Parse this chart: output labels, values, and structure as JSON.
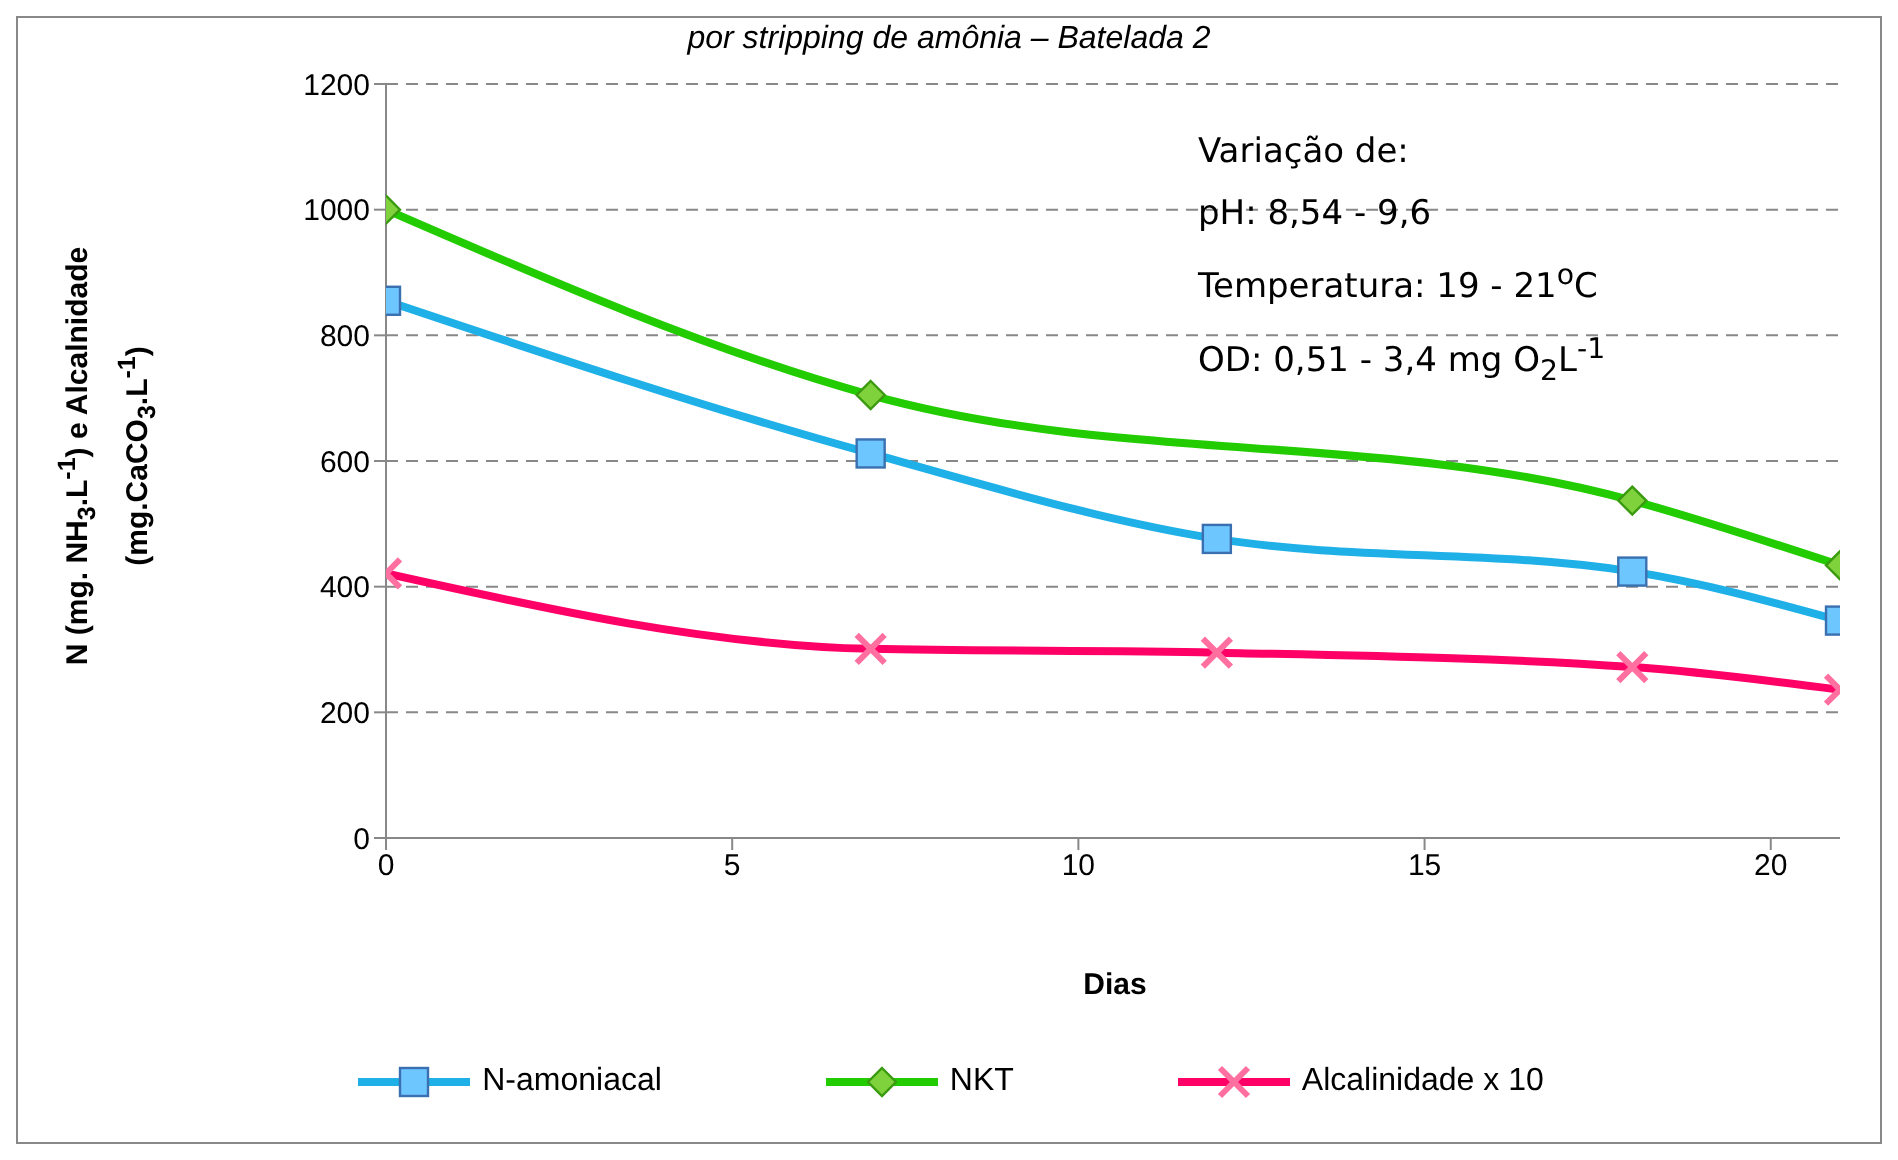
{
  "chart_data": {
    "type": "line",
    "title": "por stripping de amônia – Batelada 2",
    "xlabel": "Dias",
    "ylabel": "N (mg. NH$_{3}$.L$^{-1}$) e Alcalnidade\n(mg.CaCO$_{3}$.L$^{-1}$)",
    "x": [
      0,
      7,
      12,
      18,
      21
    ],
    "xlim": [
      0,
      21
    ],
    "xticks": [
      0,
      5,
      10,
      15,
      20
    ],
    "ylim": [
      0,
      1200
    ],
    "yticks": [
      0,
      200,
      400,
      600,
      800,
      1000,
      1200
    ],
    "grid": "y",
    "legend": "bottom",
    "line_style": "solid",
    "series": [
      {
        "name": "N-amoniacal",
        "color": "#1fb0e8",
        "marker": "square",
        "values": [
          855,
          612,
          476,
          424,
          346
        ]
      },
      {
        "name": "NKT",
        "color": "#22cc00",
        "marker": "diamond",
        "values": [
          1000,
          705,
          null,
          537,
          434
        ]
      },
      {
        "name": "Alcalinidade x 10",
        "color": "#ff0066",
        "marker": "cross",
        "values": [
          421,
          301,
          295,
          272,
          236
        ]
      }
    ],
    "annotations": [
      "Variação de:",
      "pH: 8,54 - 9,6",
      "Temperatura: 19 - 21$^{o}$C",
      "OD: 0,51 - 3,4 mg O$_{2}$L$^{-1}$"
    ]
  }
}
